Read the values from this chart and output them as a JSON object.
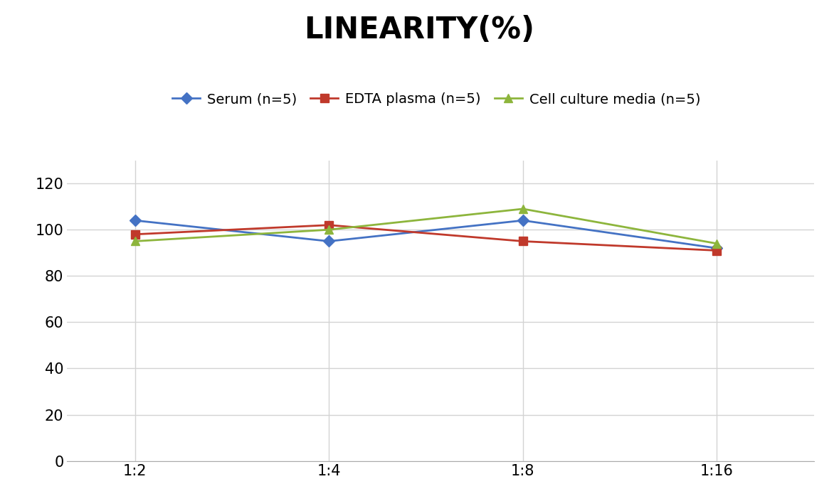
{
  "title": "LINEARITY(%)",
  "x_labels": [
    "1:2",
    "1:4",
    "1:8",
    "1:16"
  ],
  "series": [
    {
      "label": "Serum (n=5)",
      "values": [
        104,
        95,
        104,
        92
      ],
      "color": "#4472C4",
      "marker": "D",
      "markersize": 8
    },
    {
      "label": "EDTA plasma (n=5)",
      "values": [
        98,
        102,
        95,
        91
      ],
      "color": "#C0392B",
      "marker": "s",
      "markersize": 8
    },
    {
      "label": "Cell culture media (n=5)",
      "values": [
        95,
        100,
        109,
        94
      ],
      "color": "#8DB53C",
      "marker": "^",
      "markersize": 9
    }
  ],
  "ylim": [
    0,
    130
  ],
  "yticks": [
    0,
    20,
    40,
    60,
    80,
    100,
    120
  ],
  "background_color": "#FFFFFF",
  "grid_color": "#D3D3D3",
  "title_fontsize": 30,
  "legend_fontsize": 14,
  "tick_fontsize": 15
}
